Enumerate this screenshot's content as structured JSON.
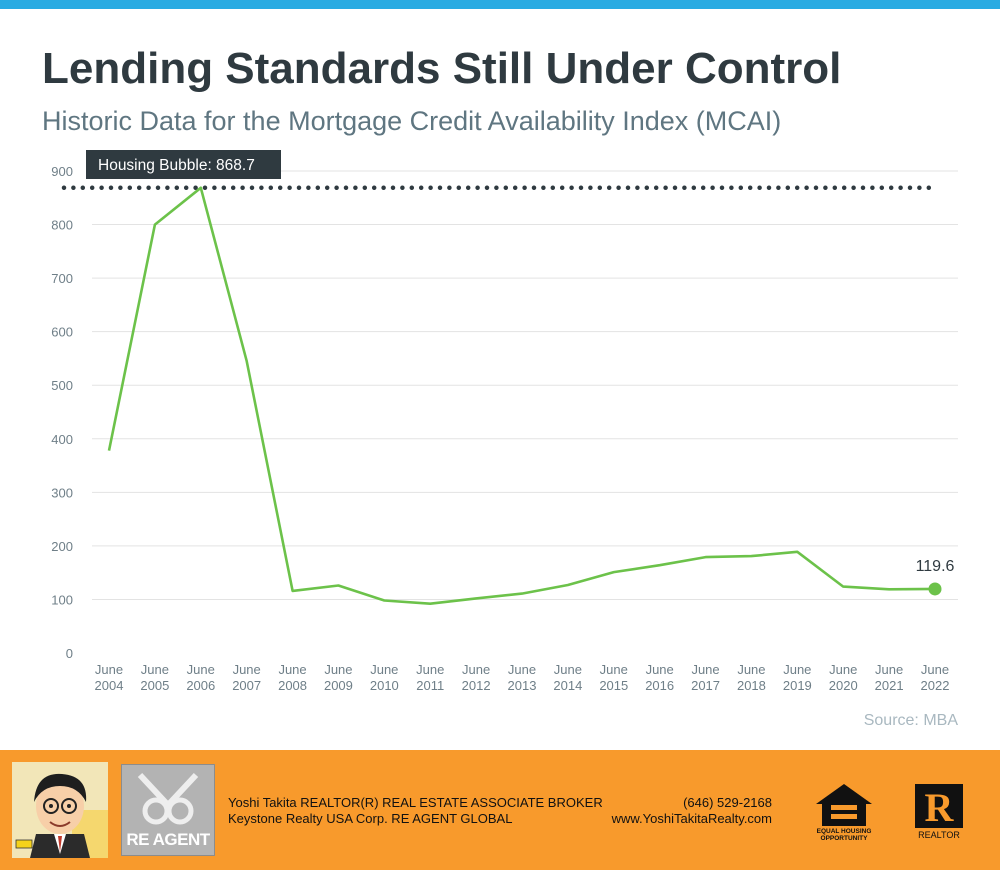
{
  "header": {
    "title": "Lending Standards Still Under Control",
    "subtitle": "Historic Data for the Mortgage Credit Availability Index (MCAI)"
  },
  "colors": {
    "line": "#6cc24a",
    "accent_bar": "#29abe2",
    "footer": "#f89a2c",
    "callout_bg": "#2f3a40"
  },
  "chart_data": {
    "type": "line",
    "title": "Lending Standards Still Under Control",
    "subtitle": "Historic Data for the Mortgage Credit Availability Index (MCAI)",
    "xlabel": "",
    "ylabel": "",
    "ylim": [
      0,
      900
    ],
    "yticks": [
      0,
      100,
      200,
      300,
      400,
      500,
      600,
      700,
      800,
      900
    ],
    "grid": true,
    "categories": [
      [
        "June",
        "2004"
      ],
      [
        "June",
        "2005"
      ],
      [
        "June",
        "2006"
      ],
      [
        "June",
        "2007"
      ],
      [
        "June",
        "2008"
      ],
      [
        "June",
        "2009"
      ],
      [
        "June",
        "2010"
      ],
      [
        "June",
        "2011"
      ],
      [
        "June",
        "2012"
      ],
      [
        "June",
        "2013"
      ],
      [
        "June",
        "2014"
      ],
      [
        "June",
        "2015"
      ],
      [
        "June",
        "2016"
      ],
      [
        "June",
        "2017"
      ],
      [
        "June",
        "2018"
      ],
      [
        "June",
        "2019"
      ],
      [
        "June",
        "2020"
      ],
      [
        "June",
        "2021"
      ],
      [
        "June",
        "2022"
      ]
    ],
    "series": [
      {
        "values": [
          378,
          800,
          868.7,
          545,
          116,
          126,
          98,
          92,
          102,
          111,
          127,
          151,
          164,
          179,
          181,
          189,
          124,
          119,
          119.6
        ]
      }
    ],
    "reference_line": {
      "value": 868.7,
      "label": "Housing Bubble: 868.7",
      "style": "dotted"
    },
    "end_label": "119.6",
    "source": "Source: MBA"
  },
  "footer": {
    "agent_line1": "Yoshi Takita REALTOR(R) REAL ESTATE ASSOCIATE BROKER",
    "agent_line2": "Keystone Realty USA Corp.  RE AGENT GLOBAL",
    "phone": "(646) 529-2168",
    "website": "www.YoshiTakitaRealty.com",
    "re_agent_logo_text": "RE AGENT",
    "eho_logo_text": [
      "EQUAL HOUSING",
      "OPPORTUNITY"
    ],
    "realtor_logo_text": "REALTOR",
    "realtor_logo_letter": "R"
  }
}
